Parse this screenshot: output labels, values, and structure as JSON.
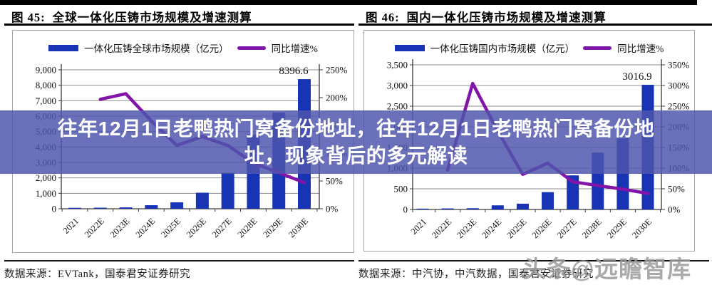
{
  "overlay": {
    "lines": [
      "往年12月1日老鸭热门窝备份地址，往年12月1日老鸭热门窝备份地",
      "址，现象背后的多元解读"
    ]
  },
  "watermark": {
    "text": "头条@远瞻智库"
  },
  "colors": {
    "bar": "#1834B4",
    "line": "#8214AA",
    "grid": "#8f8f8f",
    "axis": "#3a3a3a",
    "banner_bg": "#4D55AD",
    "banner_text": "#ffffff"
  },
  "chart_data": [
    {
      "type": "bar+line",
      "figure_label": "图 45:",
      "title": "全球一体化压铸市场规模及增速测算",
      "legend_position": "top",
      "categories": [
        "2021",
        "2022E",
        "2023E",
        "2024E",
        "2025E",
        "2026E",
        "2027E",
        "2028E",
        "2029E",
        "2030E"
      ],
      "series": [
        {
          "name": "一体化压铸全球市场规模（亿元）",
          "type": "bar",
          "axis": "left",
          "values": [
            60,
            70,
            90,
            230,
            420,
            1040,
            2330,
            4810,
            6240,
            8396.6
          ]
        },
        {
          "name": "同比增速%",
          "type": "line",
          "axis": "right",
          "values": [
            null,
            197,
            207,
            158,
            114,
            130,
            114,
            82,
            65,
            47
          ]
        }
      ],
      "left_axis": {
        "min": 0,
        "max": 9000,
        "step": 1000
      },
      "right_axis": {
        "min": 0,
        "max": 250,
        "step": 50,
        "suffix": "%"
      },
      "grid": true,
      "data_label": {
        "series": 0,
        "index": 9,
        "text": "8396.6"
      },
      "source": "数据来源：EVTank，国泰君安证券研究"
    },
    {
      "type": "bar+line",
      "figure_label": "图 46:",
      "title": "国内一体化压铸市场规模及增速测算",
      "legend_position": "top",
      "categories": [
        "2021",
        "2022E",
        "2023E",
        "2024E",
        "2025E",
        "2026E",
        "2027E",
        "2028E",
        "2029E",
        "2030E"
      ],
      "series": [
        {
          "name": "一体化压铸国内市场规模（亿元）",
          "type": "bar",
          "axis": "left",
          "values": [
            20,
            25,
            30,
            100,
            140,
            420,
            825,
            1375,
            1720,
            3016.9
          ]
        },
        {
          "name": "同比增速%",
          "type": "line",
          "axis": "right",
          "values": [
            null,
            95,
            305,
            190,
            85,
            112,
            67,
            58,
            49,
            39
          ]
        }
      ],
      "left_axis": {
        "min": 0,
        "max": 3500,
        "step": 500
      },
      "right_axis": {
        "min": 0,
        "max": 350,
        "step": 50,
        "suffix": "%"
      },
      "grid": true,
      "data_label": {
        "series": 0,
        "index": 9,
        "text": "3016.9"
      },
      "source": "数据来源：中汽协，中汽数据，国泰君安证券研究"
    }
  ]
}
